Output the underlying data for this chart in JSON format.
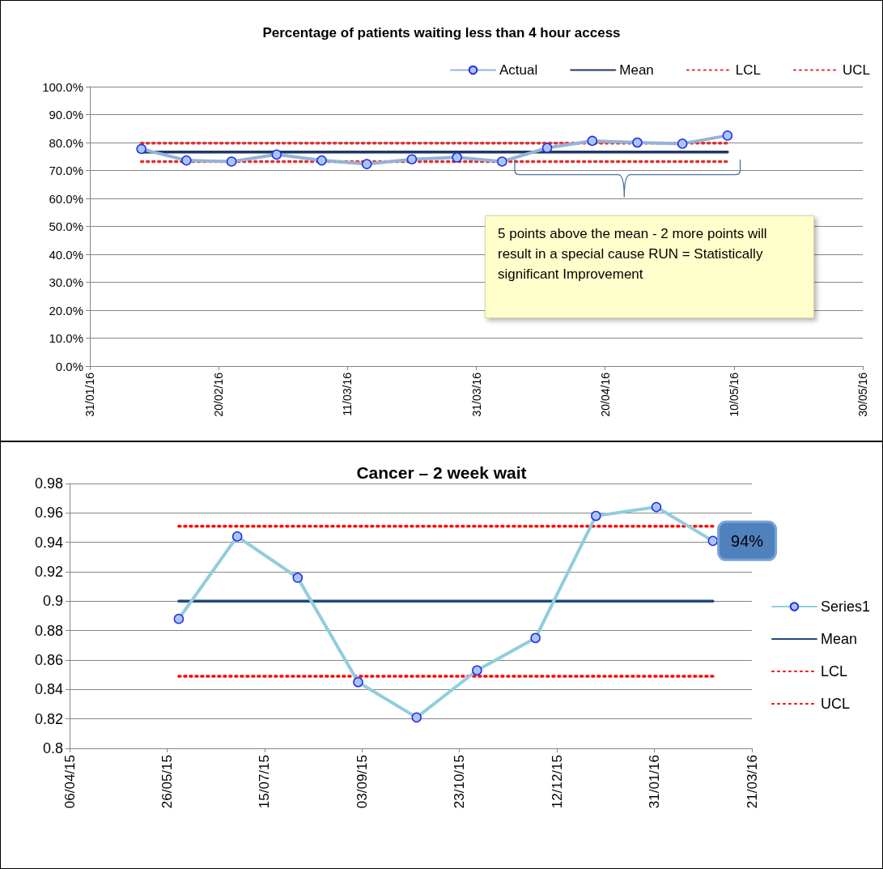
{
  "chart_data": [
    {
      "type": "line",
      "title": "Percentage of patients waiting less than 4 hour access",
      "series": [
        {
          "name": "Actual",
          "color": "#95b3d7",
          "marker": "circle",
          "line_style": "solid",
          "x": [
            "2016-02-08",
            "2016-02-15",
            "2016-02-22",
            "2016-02-29",
            "2016-03-07",
            "2016-03-14",
            "2016-03-21",
            "2016-03-28",
            "2016-04-04",
            "2016-04-11",
            "2016-04-18",
            "2016-04-25",
            "2016-05-02",
            "2016-05-09"
          ],
          "values": [
            77.7,
            73.6,
            73.2,
            75.7,
            73.6,
            72.3,
            74.0,
            74.7,
            73.2,
            78.1,
            80.6,
            80.0,
            79.6,
            82.5
          ]
        },
        {
          "name": "Mean",
          "color": "#1f3864",
          "marker": "none",
          "line_style": "solid",
          "x": [
            "2016-02-08",
            "2016-05-09"
          ],
          "values": [
            76.6,
            76.6
          ]
        },
        {
          "name": "LCL",
          "color": "#e03030",
          "marker": "none",
          "line_style": "dotted",
          "x": [
            "2016-02-08",
            "2016-05-09"
          ],
          "values": [
            73.2,
            73.2
          ]
        },
        {
          "name": "UCL",
          "color": "#e03030",
          "marker": "none",
          "line_style": "dotted",
          "x": [
            "2016-02-08",
            "2016-05-09"
          ],
          "values": [
            79.8,
            79.8
          ]
        }
      ],
      "xlim": [
        "2016-01-31",
        "2016-05-30"
      ],
      "xticks": [
        {
          "value": "2016-01-31",
          "label": "31/01/16"
        },
        {
          "value": "2016-02-20",
          "label": "20/02/16"
        },
        {
          "value": "2016-03-11",
          "label": "11/03/16"
        },
        {
          "value": "2016-03-31",
          "label": "31/03/16"
        },
        {
          "value": "2016-04-20",
          "label": "20/04/16"
        },
        {
          "value": "2016-05-10",
          "label": "10/05/16"
        },
        {
          "value": "2016-05-30",
          "label": "30/05/16"
        }
      ],
      "ylim": [
        0,
        100
      ],
      "yticks": [
        {
          "value": 0,
          "label": "0.0%"
        },
        {
          "value": 10,
          "label": "10.0%"
        },
        {
          "value": 20,
          "label": "20.0%"
        },
        {
          "value": 30,
          "label": "30.0%"
        },
        {
          "value": 40,
          "label": "40.0%"
        },
        {
          "value": 50,
          "label": "50.0%"
        },
        {
          "value": 60,
          "label": "60.0%"
        },
        {
          "value": 70,
          "label": "70.0%"
        },
        {
          "value": 80,
          "label": "80.0%"
        },
        {
          "value": 90,
          "label": "90.0%"
        },
        {
          "value": 100,
          "label": "100.0%"
        }
      ],
      "grid": "y",
      "legend": "top right",
      "annotations": [
        "5 points above the mean - 2 more points will result in a special cause RUN = Statistically significant Improvement"
      ]
    },
    {
      "type": "line",
      "title": "Cancer – 2 week wait",
      "series": [
        {
          "name": "Series1",
          "color": "#92cddc",
          "marker": "circle",
          "line_style": "solid",
          "x": [
            "2015-06-01",
            "2015-07-01",
            "2015-08-01",
            "2015-09-01",
            "2015-10-01",
            "2015-11-01",
            "2015-12-01",
            "2016-01-01",
            "2016-02-01",
            "2016-03-01"
          ],
          "values": [
            0.888,
            0.944,
            0.916,
            0.845,
            0.821,
            0.853,
            0.875,
            0.958,
            0.964,
            0.941
          ],
          "value_labels": [
            null,
            null,
            null,
            null,
            null,
            null,
            null,
            null,
            null,
            "94%"
          ]
        },
        {
          "name": "Mean",
          "color": "#1f497d",
          "marker": "none",
          "line_style": "solid",
          "x": [
            "2015-06-01",
            "2016-03-01"
          ],
          "values": [
            0.9,
            0.9
          ]
        },
        {
          "name": "LCL",
          "color": "#ff0000",
          "marker": "none",
          "line_style": "dotted",
          "x": [
            "2015-06-01",
            "2016-03-01"
          ],
          "values": [
            0.849,
            0.849
          ]
        },
        {
          "name": "UCL",
          "color": "#ff0000",
          "marker": "none",
          "line_style": "dotted",
          "x": [
            "2015-06-01",
            "2016-03-01"
          ],
          "values": [
            0.951,
            0.951
          ]
        }
      ],
      "xlim": [
        "2015-04-06",
        "2016-03-21"
      ],
      "xticks": [
        {
          "value": "2015-04-06",
          "label": "06/04/15"
        },
        {
          "value": "2015-05-26",
          "label": "26/05/15"
        },
        {
          "value": "2015-07-15",
          "label": "15/07/15"
        },
        {
          "value": "2015-09-03",
          "label": "03/09/15"
        },
        {
          "value": "2015-10-23",
          "label": "23/10/15"
        },
        {
          "value": "2015-12-12",
          "label": "12/12/15"
        },
        {
          "value": "2016-01-31",
          "label": "31/01/16"
        },
        {
          "value": "2016-03-21",
          "label": "21/03/16"
        }
      ],
      "ylim": [
        0.8,
        0.98
      ],
      "yticks": [
        0.8,
        0.82,
        0.84,
        0.86,
        0.88,
        0.9,
        0.92,
        0.94,
        0.96,
        0.98
      ],
      "grid": "y",
      "legend": "right"
    }
  ]
}
